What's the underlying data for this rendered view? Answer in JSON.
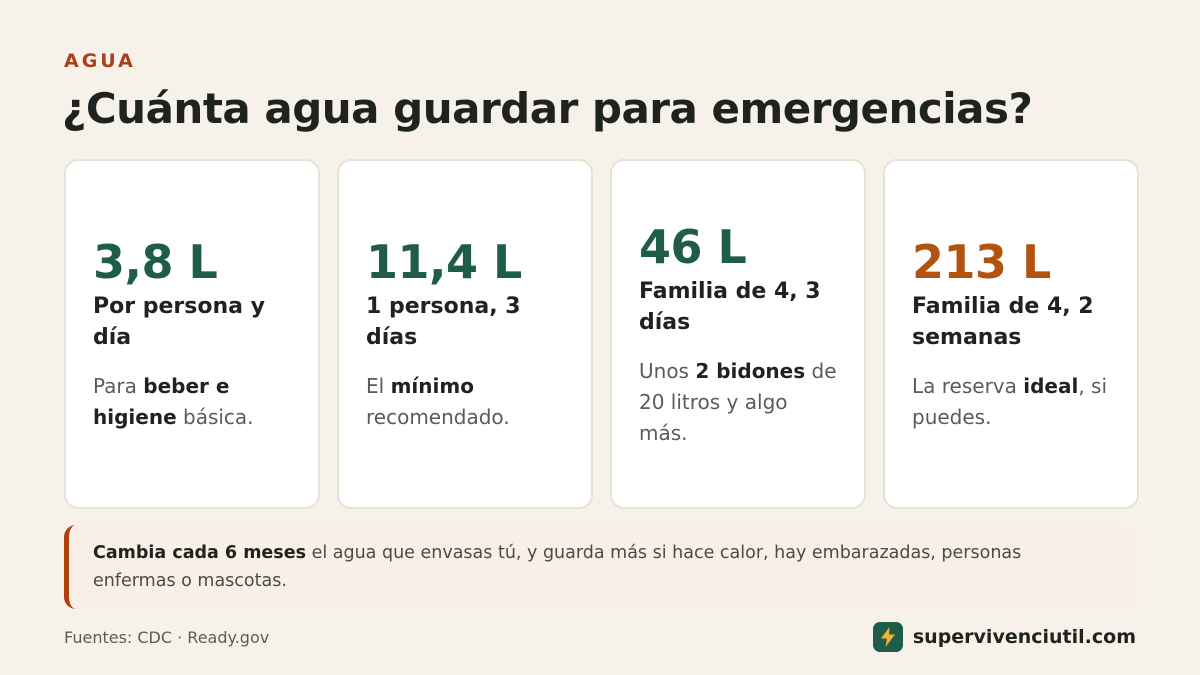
{
  "eyebrow": "AGUA",
  "title": "¿Cuánta agua guardar para emergencias?",
  "cards": [
    {
      "value": "3,8 L",
      "label": "Por persona y día",
      "desc": [
        {
          "t": "Para ",
          "b": false
        },
        {
          "t": "beber e higiene",
          "b": true
        },
        {
          "t": " básica.",
          "b": false
        }
      ]
    },
    {
      "value": "11,4 L",
      "label": "1 persona, 3 días",
      "desc": [
        {
          "t": "El ",
          "b": false
        },
        {
          "t": "mínimo",
          "b": true
        },
        {
          "t": " recomendado.",
          "b": false
        }
      ]
    },
    {
      "value": "46 L",
      "label": "Familia de 4, 3 días",
      "desc": [
        {
          "t": "Unos ",
          "b": false
        },
        {
          "t": "2 bidones",
          "b": true
        },
        {
          "t": " de 20 litros y algo más.",
          "b": false
        }
      ]
    },
    {
      "value": "213 L",
      "label": "Familia de 4, 2 semanas",
      "desc": [
        {
          "t": "La reserva ",
          "b": false
        },
        {
          "t": "ideal",
          "b": true
        },
        {
          "t": ", si puedes.",
          "b": false
        }
      ]
    }
  ],
  "note": {
    "bold": "Cambia cada 6 meses",
    "rest": " el agua que envasas tú, y guarda más si hace calor, hay embarazadas, personas enfermas o mascotas."
  },
  "sources": "Fuentes: CDC · Ready.gov",
  "brand": {
    "name": "supervivenciutil.com",
    "icon": "lightning-bolt-icon"
  },
  "colors": {
    "background": "#f6f2ea",
    "accent_green": "#1f5c4a",
    "accent_orange": "#b2530f",
    "eyebrow": "#a8401a",
    "note_border": "#b2400f",
    "bolt": "#f3b531"
  }
}
